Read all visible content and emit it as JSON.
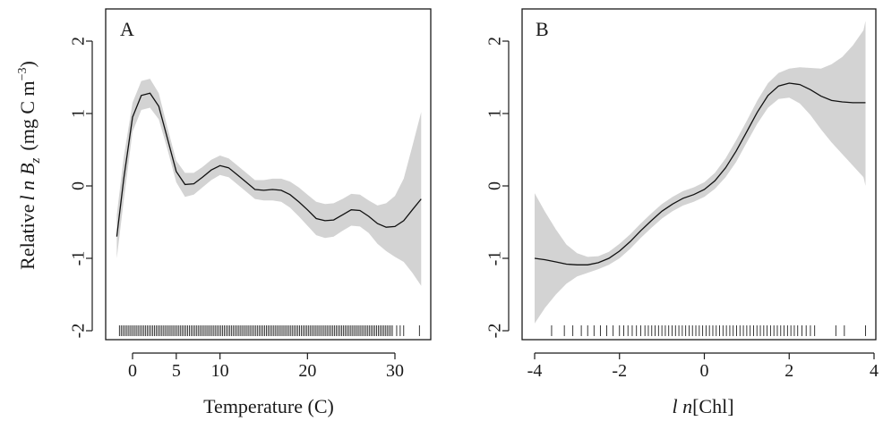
{
  "ylabel_prefix": "Relative",
  "ylabel_ln": "l n",
  "ylabel_var": "B",
  "ylabel_sub": "z",
  "ylabel_units": "(mg C m",
  "ylabel_exp": "−3",
  "ylabel_close": ")",
  "chart_data": [
    {
      "type": "line",
      "panel_label": "A",
      "xlabel": "Temperature (C)",
      "xlim": [
        -2,
        33
      ],
      "ylim": [
        -2,
        2
      ],
      "xticks": [
        0,
        5,
        10,
        20,
        30
      ],
      "yticks": [
        -2,
        -1,
        0,
        1,
        2
      ],
      "ytick_labels": [
        "-2",
        "-1",
        "0",
        "1",
        "2"
      ],
      "series": [
        {
          "x": [
            -1.8,
            -1,
            0,
            1,
            2,
            3,
            4,
            5,
            6,
            7,
            8,
            9,
            10,
            11,
            12,
            13,
            14,
            15,
            16,
            17,
            18,
            19,
            20,
            21,
            22,
            23,
            24,
            25,
            26,
            27,
            28,
            29,
            30,
            31,
            32,
            33
          ],
          "y": [
            -0.7,
            0.1,
            0.95,
            1.25,
            1.28,
            1.1,
            0.65,
            0.2,
            0.02,
            0.03,
            0.12,
            0.22,
            0.28,
            0.25,
            0.15,
            0.05,
            -0.05,
            -0.06,
            -0.05,
            -0.06,
            -0.12,
            -0.22,
            -0.33,
            -0.45,
            -0.48,
            -0.47,
            -0.4,
            -0.33,
            -0.34,
            -0.42,
            -0.52,
            -0.57,
            -0.56,
            -0.48,
            -0.33,
            -0.18
          ],
          "lower": [
            -1.0,
            -0.2,
            0.75,
            1.05,
            1.08,
            0.92,
            0.5,
            0.05,
            -0.15,
            -0.12,
            -0.02,
            0.08,
            0.15,
            0.12,
            0.02,
            -0.08,
            -0.18,
            -0.2,
            -0.2,
            -0.22,
            -0.3,
            -0.42,
            -0.55,
            -0.68,
            -0.72,
            -0.7,
            -0.62,
            -0.55,
            -0.56,
            -0.65,
            -0.8,
            -0.9,
            -0.98,
            -1.05,
            -1.2,
            -1.38
          ],
          "upper": [
            -0.4,
            0.4,
            1.15,
            1.45,
            1.48,
            1.28,
            0.8,
            0.35,
            0.18,
            0.18,
            0.26,
            0.36,
            0.42,
            0.38,
            0.28,
            0.18,
            0.08,
            0.08,
            0.1,
            0.1,
            0.06,
            -0.02,
            -0.12,
            -0.22,
            -0.25,
            -0.24,
            -0.18,
            -0.11,
            -0.12,
            -0.2,
            -0.27,
            -0.24,
            -0.14,
            0.1,
            0.55,
            1.02
          ]
        }
      ],
      "rug": [
        -1.5,
        -1.3,
        -1.1,
        -0.9,
        -0.7,
        -0.5,
        -0.3,
        -0.1,
        0.1,
        0.3,
        0.5,
        0.7,
        0.9,
        1.1,
        1.3,
        1.5,
        1.7,
        1.9,
        2.1,
        2.3,
        2.5,
        2.7,
        2.9,
        3.1,
        3.3,
        3.5,
        3.7,
        3.9,
        4.1,
        4.3,
        4.5,
        4.7,
        4.9,
        5.1,
        5.3,
        5.5,
        5.7,
        5.9,
        6.1,
        6.3,
        6.5,
        6.7,
        6.9,
        7.1,
        7.3,
        7.5,
        7.7,
        7.9,
        8.1,
        8.3,
        8.5,
        8.7,
        8.9,
        9.1,
        9.3,
        9.5,
        9.7,
        9.9,
        10.1,
        10.3,
        10.5,
        10.7,
        10.9,
        11.1,
        11.3,
        11.5,
        11.7,
        11.9,
        12.1,
        12.3,
        12.5,
        12.7,
        12.9,
        13.1,
        13.3,
        13.5,
        13.7,
        13.9,
        14.1,
        14.3,
        14.5,
        14.7,
        14.9,
        15.1,
        15.3,
        15.5,
        15.7,
        15.9,
        16.1,
        16.3,
        16.5,
        16.7,
        16.9,
        17.1,
        17.3,
        17.5,
        17.7,
        17.9,
        18.1,
        18.3,
        18.5,
        18.7,
        18.9,
        19.1,
        19.3,
        19.5,
        19.7,
        19.9,
        20.1,
        20.3,
        20.5,
        20.7,
        20.9,
        21.1,
        21.3,
        21.5,
        21.7,
        21.9,
        22.1,
        22.3,
        22.5,
        22.7,
        22.9,
        23.1,
        23.3,
        23.5,
        23.7,
        23.9,
        24.1,
        24.3,
        24.5,
        24.7,
        24.9,
        25.1,
        25.3,
        25.5,
        25.7,
        25.9,
        26.1,
        26.3,
        26.5,
        26.7,
        26.9,
        27.1,
        27.3,
        27.5,
        27.7,
        27.9,
        28.1,
        28.3,
        28.5,
        28.7,
        28.9,
        29.1,
        29.3,
        29.5,
        29.7,
        30.2,
        30.6,
        31.0,
        32.8
      ]
    },
    {
      "type": "line",
      "panel_label": "B",
      "xlabel_prefix": "l n",
      "xlabel_suffix": "[Chl]",
      "xlim": [
        -4,
        4
      ],
      "ylim": [
        -2,
        2
      ],
      "xticks": [
        -4,
        -2,
        0,
        2,
        4
      ],
      "xtick_labels": [
        "-4",
        "-2",
        "0",
        "2",
        "4"
      ],
      "yticks": [
        -2,
        -1,
        0,
        1,
        2
      ],
      "ytick_labels": [
        "-2",
        "-1",
        "0",
        "1",
        "2"
      ],
      "series": [
        {
          "x": [
            -4.0,
            -3.75,
            -3.5,
            -3.25,
            -3.0,
            -2.75,
            -2.5,
            -2.25,
            -2.0,
            -1.75,
            -1.5,
            -1.25,
            -1.0,
            -0.75,
            -0.5,
            -0.25,
            0.0,
            0.25,
            0.5,
            0.75,
            1.0,
            1.25,
            1.5,
            1.75,
            2.0,
            2.25,
            2.5,
            2.75,
            3.0,
            3.25,
            3.5,
            3.75,
            3.8
          ],
          "y": [
            -1.0,
            -1.02,
            -1.05,
            -1.08,
            -1.09,
            -1.09,
            -1.06,
            -1.0,
            -0.9,
            -0.77,
            -0.62,
            -0.48,
            -0.35,
            -0.25,
            -0.17,
            -0.12,
            -0.05,
            0.07,
            0.25,
            0.48,
            0.75,
            1.02,
            1.25,
            1.38,
            1.42,
            1.4,
            1.33,
            1.24,
            1.18,
            1.16,
            1.15,
            1.15,
            1.15
          ],
          "lower": [
            -1.9,
            -1.68,
            -1.5,
            -1.35,
            -1.25,
            -1.2,
            -1.15,
            -1.09,
            -1.0,
            -0.87,
            -0.72,
            -0.58,
            -0.45,
            -0.35,
            -0.27,
            -0.22,
            -0.15,
            -0.04,
            0.12,
            0.33,
            0.6,
            0.86,
            1.08,
            1.2,
            1.22,
            1.14,
            0.98,
            0.78,
            0.6,
            0.44,
            0.28,
            0.12,
            0.0
          ],
          "upper": [
            -0.1,
            -0.36,
            -0.6,
            -0.81,
            -0.93,
            -0.98,
            -0.97,
            -0.91,
            -0.8,
            -0.67,
            -0.52,
            -0.38,
            -0.25,
            -0.15,
            -0.07,
            -0.02,
            0.05,
            0.18,
            0.38,
            0.63,
            0.9,
            1.18,
            1.42,
            1.56,
            1.62,
            1.64,
            1.63,
            1.62,
            1.68,
            1.78,
            1.94,
            2.15,
            2.28
          ]
        }
      ],
      "rug": [
        -3.6,
        -3.3,
        -3.1,
        -2.9,
        -2.75,
        -2.6,
        -2.45,
        -2.3,
        -2.15,
        -2.0,
        -1.9,
        -1.8,
        -1.7,
        -1.6,
        -1.5,
        -1.4,
        -1.32,
        -1.24,
        -1.16,
        -1.08,
        -1.0,
        -0.92,
        -0.84,
        -0.76,
        -0.68,
        -0.6,
        -0.52,
        -0.44,
        -0.36,
        -0.28,
        -0.2,
        -0.12,
        -0.04,
        0.04,
        0.12,
        0.2,
        0.28,
        0.36,
        0.44,
        0.52,
        0.6,
        0.68,
        0.76,
        0.84,
        0.92,
        1.0,
        1.08,
        1.16,
        1.24,
        1.32,
        1.4,
        1.48,
        1.56,
        1.64,
        1.72,
        1.8,
        1.88,
        1.96,
        2.04,
        2.12,
        2.2,
        2.3,
        2.4,
        2.5,
        2.6,
        3.1,
        3.3,
        3.8
      ]
    }
  ]
}
